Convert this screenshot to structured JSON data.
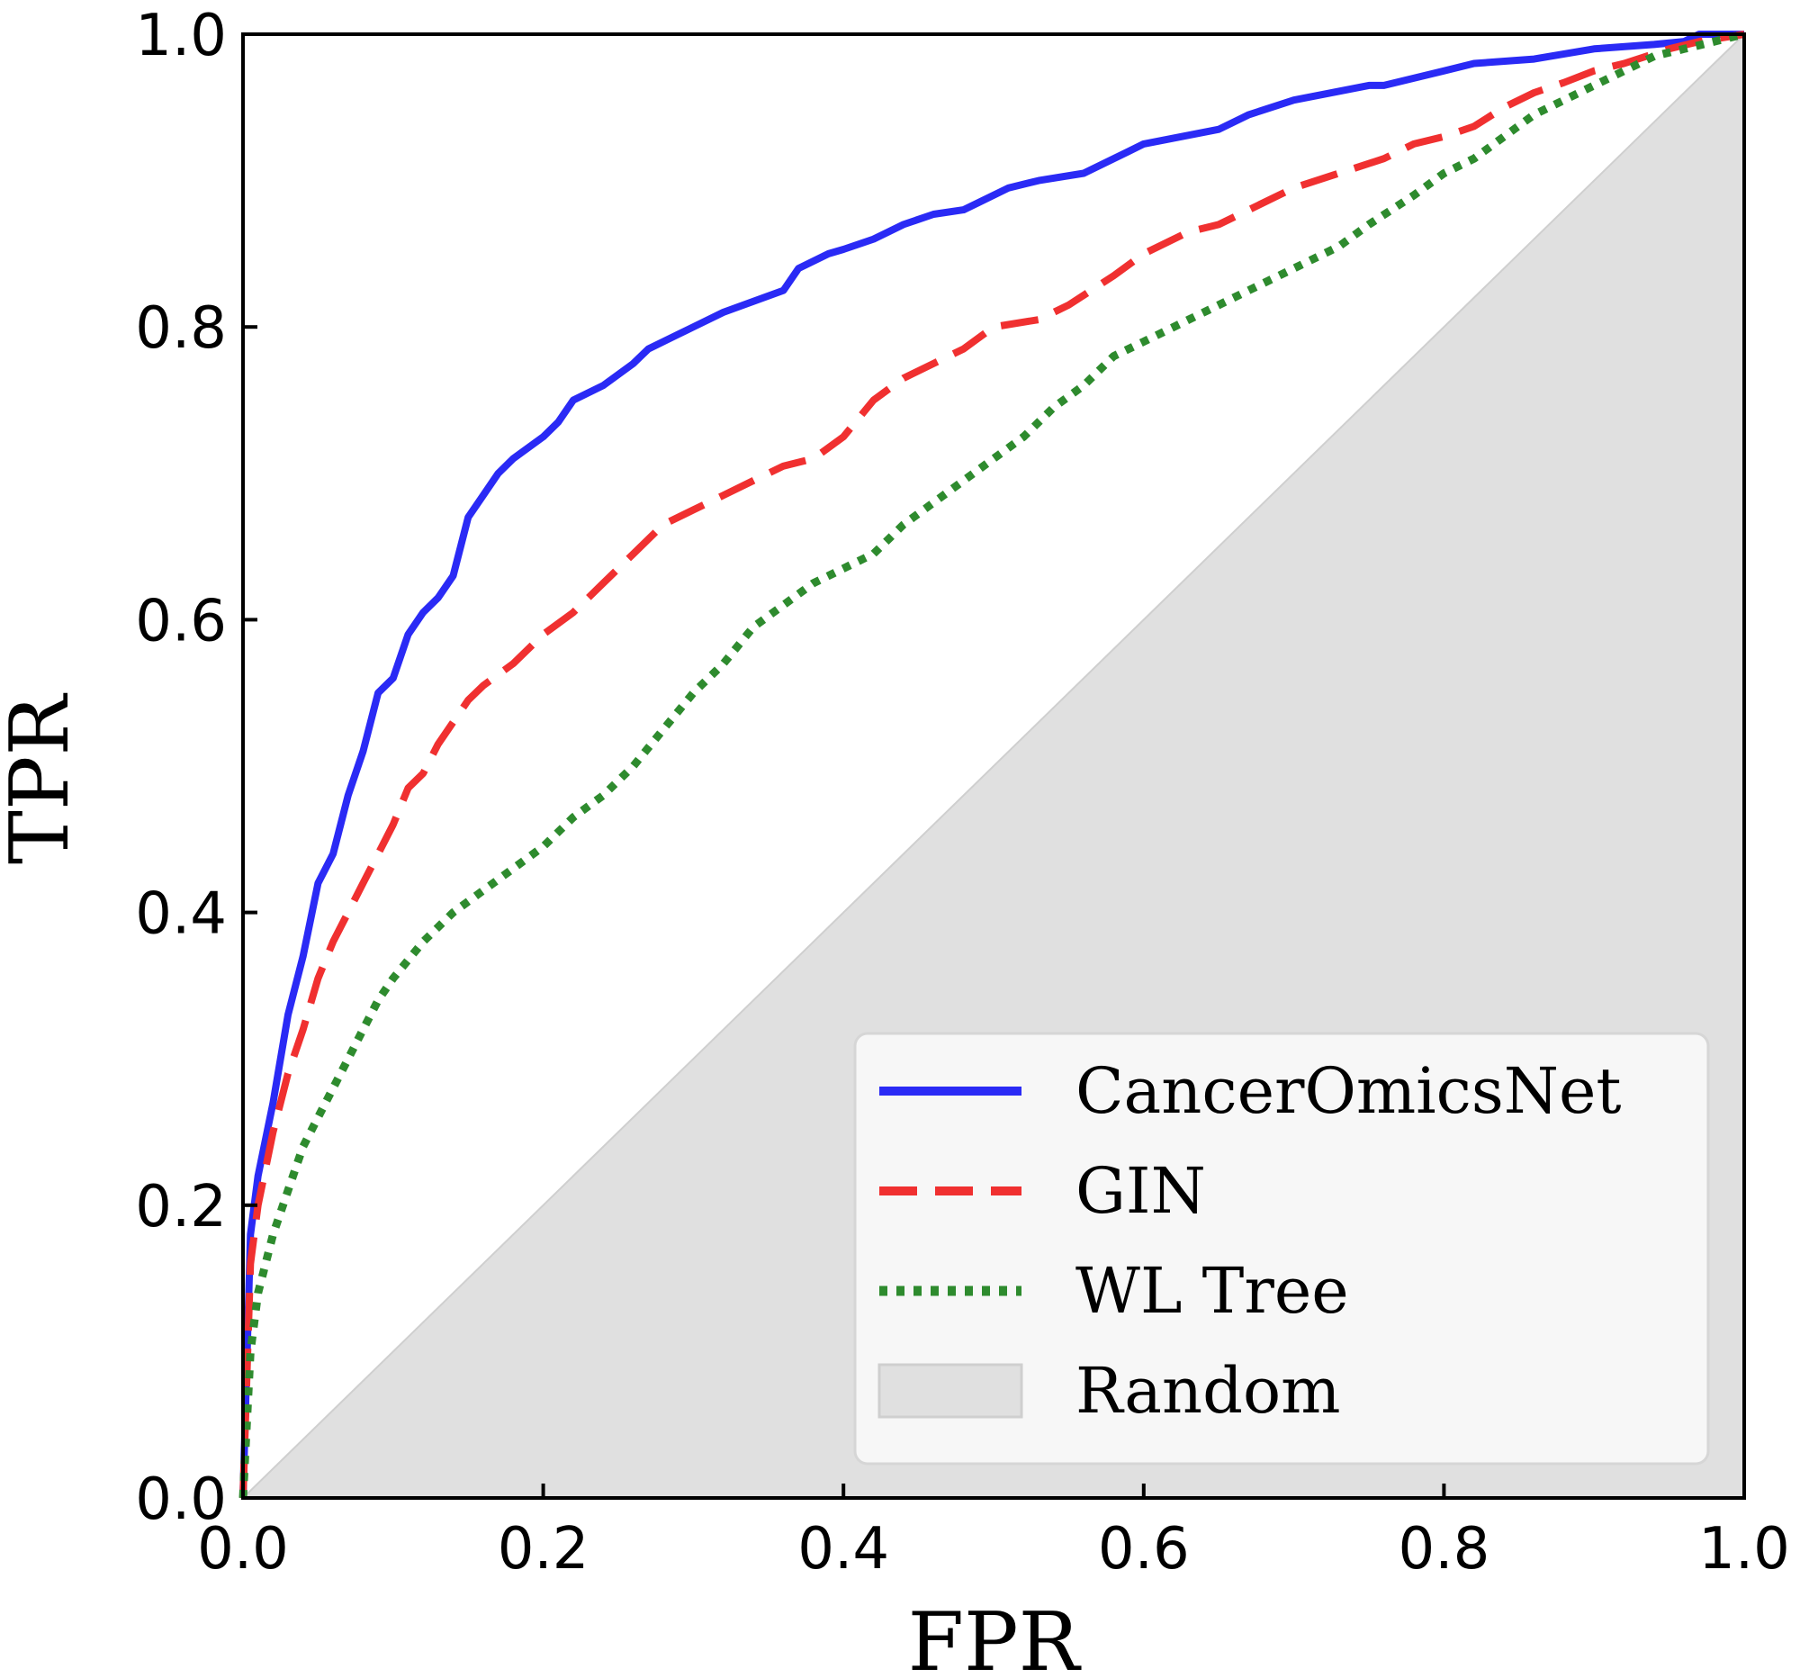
{
  "chart_data": {
    "type": "line",
    "title": "",
    "xlabel": "FPR",
    "ylabel": "TPR",
    "xlim": [
      0.0,
      1.0
    ],
    "ylim": [
      0.0,
      1.0
    ],
    "xticks": [
      "0.0",
      "0.2",
      "0.4",
      "0.6",
      "0.8",
      "1.0"
    ],
    "yticks": [
      "0.0",
      "0.2",
      "0.4",
      "0.6",
      "0.8",
      "1.0"
    ],
    "grid": false,
    "legend_position": "bottom-right",
    "series": [
      {
        "name": "CancerOmicsNet",
        "style": "solid",
        "color": "#2a2af5",
        "points": [
          [
            0,
            0
          ],
          [
            0.005,
            0.18
          ],
          [
            0.01,
            0.22
          ],
          [
            0.02,
            0.27
          ],
          [
            0.03,
            0.33
          ],
          [
            0.04,
            0.37
          ],
          [
            0.05,
            0.42
          ],
          [
            0.06,
            0.44
          ],
          [
            0.07,
            0.48
          ],
          [
            0.08,
            0.51
          ],
          [
            0.09,
            0.55
          ],
          [
            0.1,
            0.56
          ],
          [
            0.11,
            0.59
          ],
          [
            0.12,
            0.605
          ],
          [
            0.13,
            0.615
          ],
          [
            0.14,
            0.63
          ],
          [
            0.15,
            0.67
          ],
          [
            0.16,
            0.685
          ],
          [
            0.17,
            0.7
          ],
          [
            0.18,
            0.71
          ],
          [
            0.2,
            0.725
          ],
          [
            0.21,
            0.735
          ],
          [
            0.22,
            0.75
          ],
          [
            0.24,
            0.76
          ],
          [
            0.26,
            0.775
          ],
          [
            0.27,
            0.785
          ],
          [
            0.29,
            0.795
          ],
          [
            0.3,
            0.8
          ],
          [
            0.32,
            0.81
          ],
          [
            0.36,
            0.825
          ],
          [
            0.37,
            0.84
          ],
          [
            0.39,
            0.85
          ],
          [
            0.4,
            0.853
          ],
          [
            0.42,
            0.86
          ],
          [
            0.44,
            0.87
          ],
          [
            0.46,
            0.877
          ],
          [
            0.48,
            0.88
          ],
          [
            0.49,
            0.885
          ],
          [
            0.51,
            0.895
          ],
          [
            0.53,
            0.9
          ],
          [
            0.56,
            0.905
          ],
          [
            0.59,
            0.92
          ],
          [
            0.6,
            0.925
          ],
          [
            0.65,
            0.935
          ],
          [
            0.67,
            0.945
          ],
          [
            0.7,
            0.955
          ],
          [
            0.75,
            0.965
          ],
          [
            0.76,
            0.965
          ],
          [
            0.8,
            0.975
          ],
          [
            0.82,
            0.98
          ],
          [
            0.86,
            0.983
          ],
          [
            0.9,
            0.99
          ],
          [
            0.94,
            0.993
          ],
          [
            0.96,
            0.995
          ],
          [
            0.97,
            1.0
          ],
          [
            1.0,
            1.0
          ]
        ]
      },
      {
        "name": "GIN",
        "style": "dashed",
        "color": "#f03030",
        "points": [
          [
            0,
            0
          ],
          [
            0.005,
            0.16
          ],
          [
            0.01,
            0.2
          ],
          [
            0.02,
            0.25
          ],
          [
            0.03,
            0.29
          ],
          [
            0.04,
            0.32
          ],
          [
            0.05,
            0.355
          ],
          [
            0.06,
            0.38
          ],
          [
            0.07,
            0.4
          ],
          [
            0.08,
            0.42
          ],
          [
            0.09,
            0.44
          ],
          [
            0.1,
            0.46
          ],
          [
            0.11,
            0.485
          ],
          [
            0.12,
            0.495
          ],
          [
            0.13,
            0.515
          ],
          [
            0.15,
            0.545
          ],
          [
            0.16,
            0.555
          ],
          [
            0.18,
            0.57
          ],
          [
            0.2,
            0.59
          ],
          [
            0.22,
            0.605
          ],
          [
            0.24,
            0.625
          ],
          [
            0.26,
            0.645
          ],
          [
            0.28,
            0.665
          ],
          [
            0.3,
            0.675
          ],
          [
            0.32,
            0.685
          ],
          [
            0.34,
            0.695
          ],
          [
            0.36,
            0.705
          ],
          [
            0.38,
            0.71
          ],
          [
            0.4,
            0.725
          ],
          [
            0.42,
            0.75
          ],
          [
            0.44,
            0.765
          ],
          [
            0.46,
            0.775
          ],
          [
            0.48,
            0.785
          ],
          [
            0.5,
            0.8
          ],
          [
            0.53,
            0.805
          ],
          [
            0.55,
            0.815
          ],
          [
            0.58,
            0.835
          ],
          [
            0.6,
            0.85
          ],
          [
            0.63,
            0.865
          ],
          [
            0.65,
            0.87
          ],
          [
            0.67,
            0.88
          ],
          [
            0.7,
            0.895
          ],
          [
            0.73,
            0.905
          ],
          [
            0.76,
            0.915
          ],
          [
            0.78,
            0.925
          ],
          [
            0.8,
            0.93
          ],
          [
            0.82,
            0.937
          ],
          [
            0.84,
            0.95
          ],
          [
            0.86,
            0.96
          ],
          [
            0.88,
            0.967
          ],
          [
            0.9,
            0.975
          ],
          [
            0.92,
            0.98
          ],
          [
            0.95,
            0.99
          ],
          [
            0.97,
            0.995
          ],
          [
            1.0,
            1.0
          ]
        ]
      },
      {
        "name": "WL Tree",
        "style": "dotted",
        "color": "#2e8b2e",
        "points": [
          [
            0,
            0
          ],
          [
            0.005,
            0.1
          ],
          [
            0.01,
            0.14
          ],
          [
            0.02,
            0.18
          ],
          [
            0.03,
            0.21
          ],
          [
            0.04,
            0.24
          ],
          [
            0.05,
            0.26
          ],
          [
            0.06,
            0.28
          ],
          [
            0.07,
            0.3
          ],
          [
            0.08,
            0.32
          ],
          [
            0.09,
            0.34
          ],
          [
            0.1,
            0.355
          ],
          [
            0.12,
            0.38
          ],
          [
            0.14,
            0.4
          ],
          [
            0.16,
            0.415
          ],
          [
            0.18,
            0.43
          ],
          [
            0.2,
            0.445
          ],
          [
            0.22,
            0.465
          ],
          [
            0.24,
            0.48
          ],
          [
            0.26,
            0.5
          ],
          [
            0.28,
            0.525
          ],
          [
            0.3,
            0.55
          ],
          [
            0.32,
            0.57
          ],
          [
            0.34,
            0.595
          ],
          [
            0.36,
            0.61
          ],
          [
            0.38,
            0.625
          ],
          [
            0.4,
            0.635
          ],
          [
            0.42,
            0.645
          ],
          [
            0.44,
            0.665
          ],
          [
            0.46,
            0.68
          ],
          [
            0.48,
            0.695
          ],
          [
            0.5,
            0.71
          ],
          [
            0.52,
            0.725
          ],
          [
            0.54,
            0.745
          ],
          [
            0.56,
            0.76
          ],
          [
            0.58,
            0.78
          ],
          [
            0.6,
            0.79
          ],
          [
            0.63,
            0.805
          ],
          [
            0.65,
            0.815
          ],
          [
            0.68,
            0.83
          ],
          [
            0.7,
            0.84
          ],
          [
            0.73,
            0.855
          ],
          [
            0.75,
            0.87
          ],
          [
            0.78,
            0.89
          ],
          [
            0.8,
            0.905
          ],
          [
            0.82,
            0.915
          ],
          [
            0.84,
            0.93
          ],
          [
            0.86,
            0.945
          ],
          [
            0.88,
            0.955
          ],
          [
            0.9,
            0.965
          ],
          [
            0.92,
            0.975
          ],
          [
            0.94,
            0.985
          ],
          [
            0.96,
            0.99
          ],
          [
            1.0,
            1.0
          ]
        ]
      },
      {
        "name": "Random",
        "style": "fill",
        "color": "#e0e0e0",
        "points": [
          [
            0,
            0
          ],
          [
            1,
            1
          ]
        ]
      }
    ]
  }
}
